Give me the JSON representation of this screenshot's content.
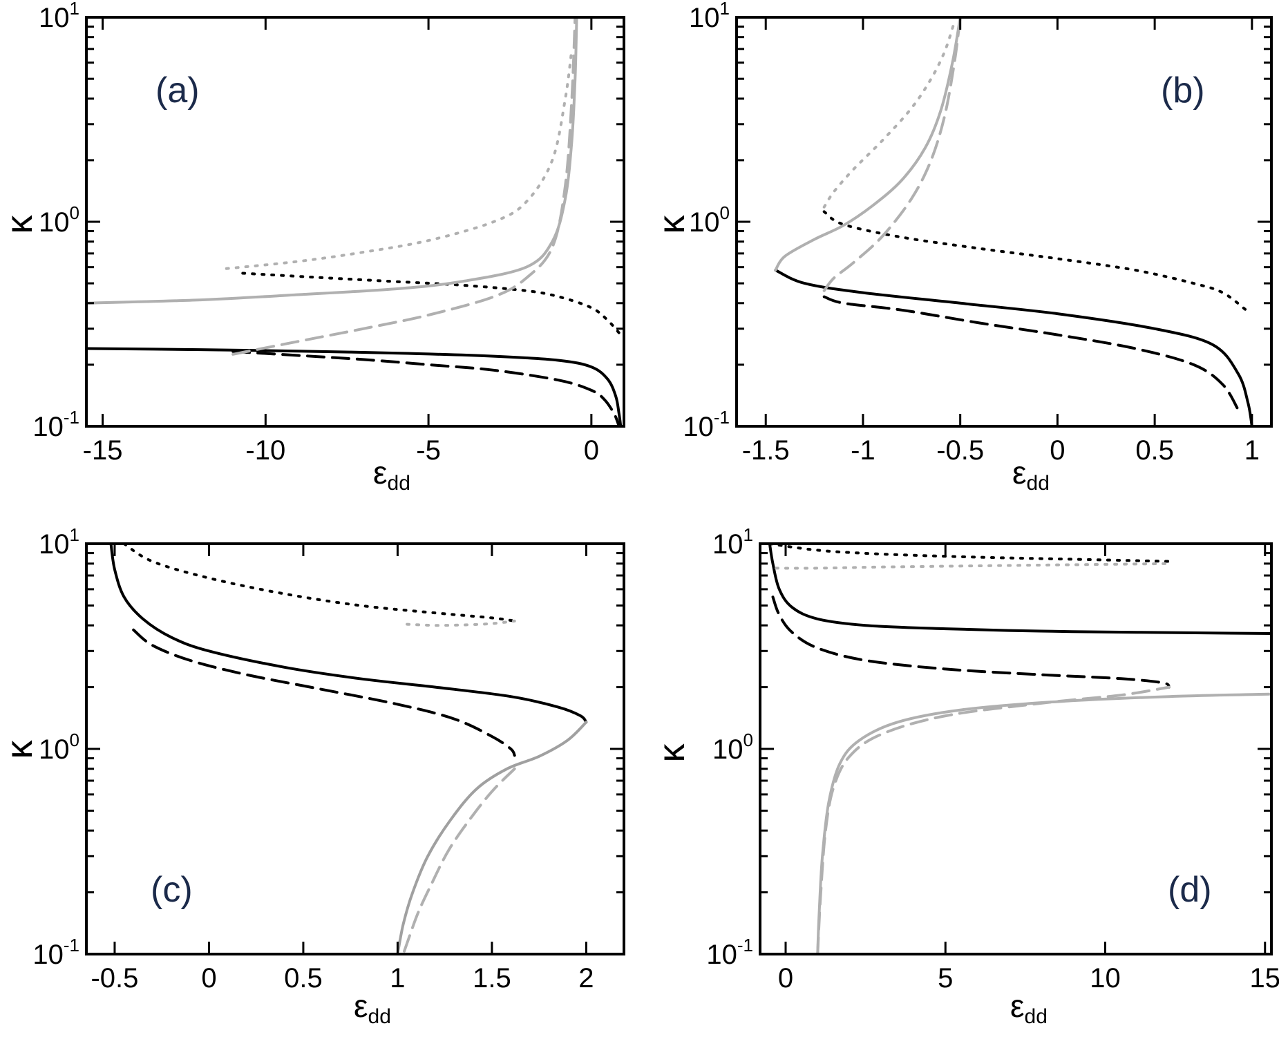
{
  "chart_data": [
    {
      "panel": "(a)",
      "type": "line",
      "xlabel": "ε",
      "xlabel_sub": "dd",
      "ylabel": "κ",
      "xlim": [
        -15.5,
        1.0
      ],
      "ylim": [
        0.1,
        10
      ],
      "yscale": "log",
      "xticks": [
        -15,
        -10,
        -5,
        0
      ],
      "xtick_labels": [
        "-15",
        "-10",
        "-5",
        "0"
      ],
      "yticks": [
        0.1,
        1,
        10
      ],
      "ytick_labels": [
        {
          "base": "10",
          "exp": "-1"
        },
        {
          "base": "10",
          "exp": "0"
        },
        {
          "base": "10",
          "exp": "1"
        }
      ],
      "series": [
        {
          "name": "black solid",
          "color": "#000000",
          "dash": "solid",
          "x": [
            -15.5,
            -12,
            -9,
            -6,
            -3,
            -1,
            0,
            0.5,
            0.75,
            0.85,
            0.9
          ],
          "y": [
            0.24,
            0.237,
            0.233,
            0.228,
            0.22,
            0.21,
            0.195,
            0.17,
            0.14,
            0.115,
            0.1
          ]
        },
        {
          "name": "black dashed",
          "color": "#000000",
          "dash": "dashed",
          "x": [
            -11,
            -9,
            -7,
            -5,
            -3,
            -1,
            0,
            0.4,
            0.7,
            0.85
          ],
          "y": [
            0.232,
            0.222,
            0.212,
            0.2,
            0.188,
            0.168,
            0.15,
            0.135,
            0.115,
            0.1
          ]
        },
        {
          "name": "black dotted",
          "color": "#000000",
          "dash": "dotted",
          "x": [
            -10.7,
            -8,
            -6,
            -4,
            -2,
            -1,
            0,
            0.5,
            0.9
          ],
          "y": [
            0.56,
            0.53,
            0.51,
            0.49,
            0.46,
            0.43,
            0.38,
            0.33,
            0.28
          ]
        },
        {
          "name": "gray solid",
          "color": "#b0b0b0",
          "dash": "solid",
          "x": [
            -15.5,
            -12,
            -9,
            -6,
            -4,
            -2,
            -1.2,
            -0.8,
            -0.6,
            -0.5,
            -0.45
          ],
          "y": [
            0.4,
            0.415,
            0.44,
            0.47,
            0.51,
            0.6,
            0.8,
            1.3,
            2.5,
            5,
            10
          ]
        },
        {
          "name": "gray dashed",
          "color": "#b0b0b0",
          "dash": "dashed",
          "x": [
            -11,
            -9,
            -7,
            -5,
            -3,
            -2,
            -1.2,
            -0.8,
            -0.6,
            -0.5
          ],
          "y": [
            0.225,
            0.26,
            0.3,
            0.35,
            0.43,
            0.53,
            0.75,
            1.5,
            4,
            10
          ]
        },
        {
          "name": "gray dotted",
          "color": "#b0b0b0",
          "dash": "dotted",
          "x": [
            -11.2,
            -9,
            -7,
            -5,
            -3,
            -2,
            -1.2,
            -0.8,
            -0.6
          ],
          "y": [
            0.59,
            0.64,
            0.71,
            0.81,
            1.0,
            1.25,
            2.0,
            4.0,
            7.0
          ]
        }
      ]
    },
    {
      "panel": "(b)",
      "type": "line",
      "xlabel": "ε",
      "xlabel_sub": "dd",
      "ylabel": "κ",
      "xlim": [
        -1.65,
        1.1
      ],
      "ylim": [
        0.1,
        10
      ],
      "yscale": "log",
      "xticks": [
        -1.5,
        -1,
        -0.5,
        0,
        0.5,
        1
      ],
      "xtick_labels": [
        "-1.5",
        "-1",
        "-0.5",
        "0",
        "0.5",
        "1"
      ],
      "yticks": [
        0.1,
        1,
        10
      ],
      "ytick_labels": [
        {
          "base": "10",
          "exp": "-1"
        },
        {
          "base": "10",
          "exp": "0"
        },
        {
          "base": "10",
          "exp": "1"
        }
      ],
      "series": [
        {
          "name": "black solid",
          "color": "#000000",
          "dash": "solid",
          "x": [
            -1.45,
            -1.3,
            -1.0,
            -0.5,
            0,
            0.5,
            0.8,
            0.93,
            0.98,
            1.0
          ],
          "y": [
            0.58,
            0.5,
            0.45,
            0.4,
            0.355,
            0.3,
            0.25,
            0.18,
            0.13,
            0.1
          ]
        },
        {
          "name": "black dashed",
          "color": "#000000",
          "dash": "dashed",
          "x": [
            -1.2,
            -1.1,
            -0.8,
            -0.4,
            0,
            0.4,
            0.7,
            0.85,
            0.93
          ],
          "y": [
            0.43,
            0.4,
            0.37,
            0.32,
            0.28,
            0.24,
            0.2,
            0.16,
            0.12
          ]
        },
        {
          "name": "black dotted",
          "color": "#000000",
          "dash": "dotted",
          "x": [
            -1.2,
            -1.1,
            -0.8,
            -0.4,
            0,
            0.4,
            0.7,
            0.85,
            0.97
          ],
          "y": [
            1.12,
            0.97,
            0.84,
            0.74,
            0.66,
            0.58,
            0.5,
            0.45,
            0.37
          ]
        },
        {
          "name": "gray solid",
          "color": "#b0b0b0",
          "dash": "solid",
          "x": [
            -1.45,
            -1.4,
            -1.25,
            -1.1,
            -0.95,
            -0.8,
            -0.68,
            -0.6,
            -0.54,
            -0.5
          ],
          "y": [
            0.58,
            0.68,
            0.82,
            0.96,
            1.2,
            1.6,
            2.3,
            3.5,
            6,
            10
          ]
        },
        {
          "name": "gray dashed",
          "color": "#b0b0b0",
          "dash": "dashed",
          "x": [
            -1.2,
            -1.15,
            -1.05,
            -0.9,
            -0.75,
            -0.65,
            -0.58,
            -0.53,
            -0.5
          ],
          "y": [
            0.46,
            0.53,
            0.63,
            0.85,
            1.3,
            2.0,
            3.3,
            6,
            10
          ]
        },
        {
          "name": "gray dotted",
          "color": "#b0b0b0",
          "dash": "dotted",
          "x": [
            -1.2,
            -1.15,
            -1.05,
            -0.9,
            -0.75,
            -0.65,
            -0.58,
            -0.53
          ],
          "y": [
            1.18,
            1.4,
            1.8,
            2.5,
            3.6,
            5.0,
            6.8,
            9.5
          ]
        }
      ]
    },
    {
      "panel": "(c)",
      "type": "line",
      "xlabel": "ε",
      "xlabel_sub": "dd",
      "ylabel": "κ",
      "xlim": [
        -0.65,
        2.2
      ],
      "ylim": [
        0.1,
        10
      ],
      "yscale": "log",
      "xticks": [
        -0.5,
        0,
        0.5,
        1,
        1.5,
        2
      ],
      "xtick_labels": [
        "-0.5",
        "0",
        "0.5",
        "1",
        "1.5",
        "2"
      ],
      "yticks": [
        0.1,
        1,
        10
      ],
      "ytick_labels": [
        {
          "base": "10",
          "exp": "-1"
        },
        {
          "base": "10",
          "exp": "0"
        },
        {
          "base": "10",
          "exp": "1"
        }
      ],
      "series": [
        {
          "name": "black solid",
          "color": "#000000",
          "dash": "solid",
          "x": [
            -0.52,
            -0.5,
            -0.45,
            -0.35,
            -0.2,
            0,
            0.4,
            0.8,
            1.2,
            1.6,
            1.85,
            1.97,
            2.0
          ],
          "y": [
            10,
            7.5,
            5.5,
            4.3,
            3.5,
            3.0,
            2.5,
            2.2,
            2.0,
            1.8,
            1.6,
            1.45,
            1.35
          ]
        },
        {
          "name": "black dashed",
          "color": "#000000",
          "dash": "dashed",
          "x": [
            -0.4,
            -0.3,
            -0.1,
            0.2,
            0.6,
            1.0,
            1.3,
            1.5,
            1.6,
            1.62
          ],
          "y": [
            3.8,
            3.2,
            2.7,
            2.3,
            1.95,
            1.65,
            1.4,
            1.15,
            1.0,
            0.93
          ]
        },
        {
          "name": "black dotted",
          "color": "#000000",
          "dash": "dotted",
          "x": [
            -0.45,
            -0.3,
            0,
            0.4,
            0.8,
            1.2,
            1.5,
            1.62
          ],
          "y": [
            10,
            8.2,
            6.8,
            5.7,
            5.0,
            4.6,
            4.35,
            4.2
          ]
        },
        {
          "name": "gray solid",
          "color": "#a0a0a0",
          "dash": "solid",
          "x": [
            2.0,
            1.9,
            1.75,
            1.58,
            1.42,
            1.28,
            1.16,
            1.08,
            1.03,
            1.0
          ],
          "y": [
            1.35,
            1.1,
            0.92,
            0.8,
            0.64,
            0.45,
            0.3,
            0.2,
            0.14,
            0.1
          ]
        },
        {
          "name": "gray dashed",
          "color": "#b0b0b0",
          "dash": "dashed",
          "x": [
            1.62,
            1.5,
            1.38,
            1.27,
            1.18,
            1.11,
            1.06,
            1.03
          ],
          "y": [
            0.8,
            0.62,
            0.45,
            0.32,
            0.22,
            0.16,
            0.12,
            0.1
          ]
        },
        {
          "name": "gray dotted",
          "color": "#b0b0b0",
          "dash": "dotted",
          "x": [
            1.05,
            1.2,
            1.35,
            1.5,
            1.62
          ],
          "y": [
            4.05,
            4.0,
            4.02,
            4.08,
            4.2
          ]
        }
      ]
    },
    {
      "panel": "(d)",
      "type": "line",
      "xlabel": "ε",
      "xlabel_sub": "dd",
      "ylabel": "κ",
      "xlim": [
        -0.8,
        15.2
      ],
      "ylim": [
        0.1,
        10
      ],
      "yscale": "log",
      "xticks": [
        0,
        5,
        10,
        15
      ],
      "xtick_labels": [
        "0",
        "5",
        "10",
        "15"
      ],
      "yticks": [
        0.1,
        1,
        10
      ],
      "ytick_labels": [
        {
          "base": "10",
          "exp": "-1"
        },
        {
          "base": "10",
          "exp": "0"
        },
        {
          "base": "10",
          "exp": "1"
        }
      ],
      "series": [
        {
          "name": "black solid",
          "color": "#000000",
          "dash": "solid",
          "x": [
            -0.5,
            -0.4,
            -0.2,
            0.2,
            1,
            2.5,
            5,
            8,
            11,
            15.2
          ],
          "y": [
            10,
            8.0,
            6.0,
            4.9,
            4.3,
            4.0,
            3.85,
            3.75,
            3.7,
            3.65
          ]
        },
        {
          "name": "black dashed",
          "color": "#000000",
          "dash": "dashed",
          "x": [
            -0.4,
            -0.2,
            0.2,
            1,
            2.5,
            5,
            8,
            10.5,
            11.8,
            12.0
          ],
          "y": [
            5.5,
            4.5,
            3.7,
            3.1,
            2.7,
            2.45,
            2.3,
            2.2,
            2.1,
            2.0
          ]
        },
        {
          "name": "black dotted",
          "color": "#000000",
          "dash": "dotted",
          "x": [
            -0.5,
            1,
            3,
            6,
            9,
            12
          ],
          "y": [
            10,
            9.3,
            8.9,
            8.6,
            8.4,
            8.2
          ]
        },
        {
          "name": "gray solid",
          "color": "#b0b0b0",
          "dash": "solid",
          "x": [
            1.0,
            1.05,
            1.15,
            1.35,
            1.7,
            2.3,
            3.5,
            5.5,
            8.5,
            12,
            15.2
          ],
          "y": [
            0.1,
            0.16,
            0.3,
            0.55,
            0.85,
            1.1,
            1.35,
            1.55,
            1.7,
            1.8,
            1.85
          ]
        },
        {
          "name": "gray dashed",
          "color": "#b0b0b0",
          "dash": "dashed",
          "x": [
            1.0,
            1.1,
            1.25,
            1.5,
            2.0,
            3.0,
            5.0,
            8.0,
            10.5,
            12.0
          ],
          "y": [
            0.1,
            0.2,
            0.4,
            0.65,
            0.92,
            1.18,
            1.45,
            1.67,
            1.83,
            2.0
          ]
        },
        {
          "name": "gray dotted",
          "color": "#b0b0b0",
          "dash": "dotted",
          "x": [
            -0.3,
            1,
            3,
            6,
            9,
            12
          ],
          "y": [
            7.6,
            7.6,
            7.7,
            7.8,
            7.9,
            8.0
          ]
        }
      ]
    }
  ]
}
